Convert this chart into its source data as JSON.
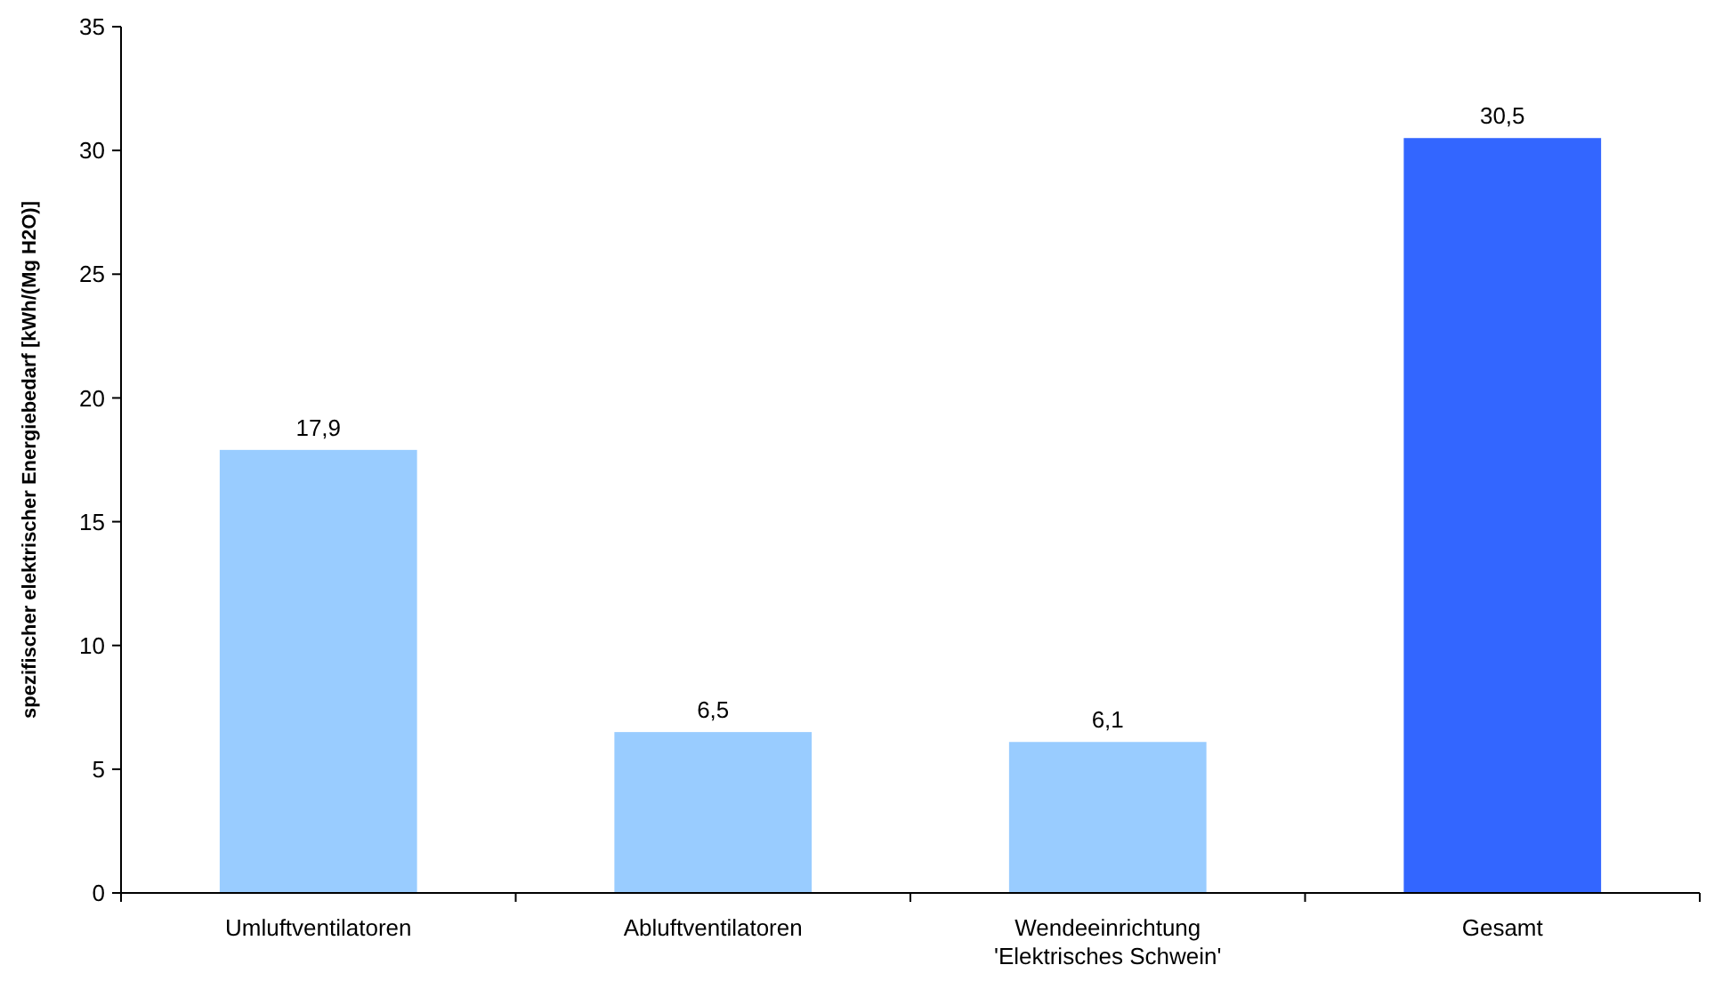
{
  "chart_data": {
    "type": "bar",
    "ylabel": "spezifischer elektrischer Energiebedarf [kWh/(Mg H2O)]",
    "categories": [
      "Umluftventilatoren",
      "Abluftventilatoren",
      "Wendeeinrichtung\n'Elektrisches Schwein'",
      "Gesamt"
    ],
    "values": [
      17.9,
      6.5,
      6.1,
      30.5
    ],
    "colors": [
      "#99ccff",
      "#99ccff",
      "#99ccff",
      "#3366ff"
    ],
    "value_labels": [
      "17,9",
      "6,5",
      "6,1",
      "30,5"
    ],
    "ylim": [
      0,
      35
    ],
    "yticks": [
      0,
      5,
      10,
      15,
      20,
      25,
      30,
      35
    ]
  }
}
